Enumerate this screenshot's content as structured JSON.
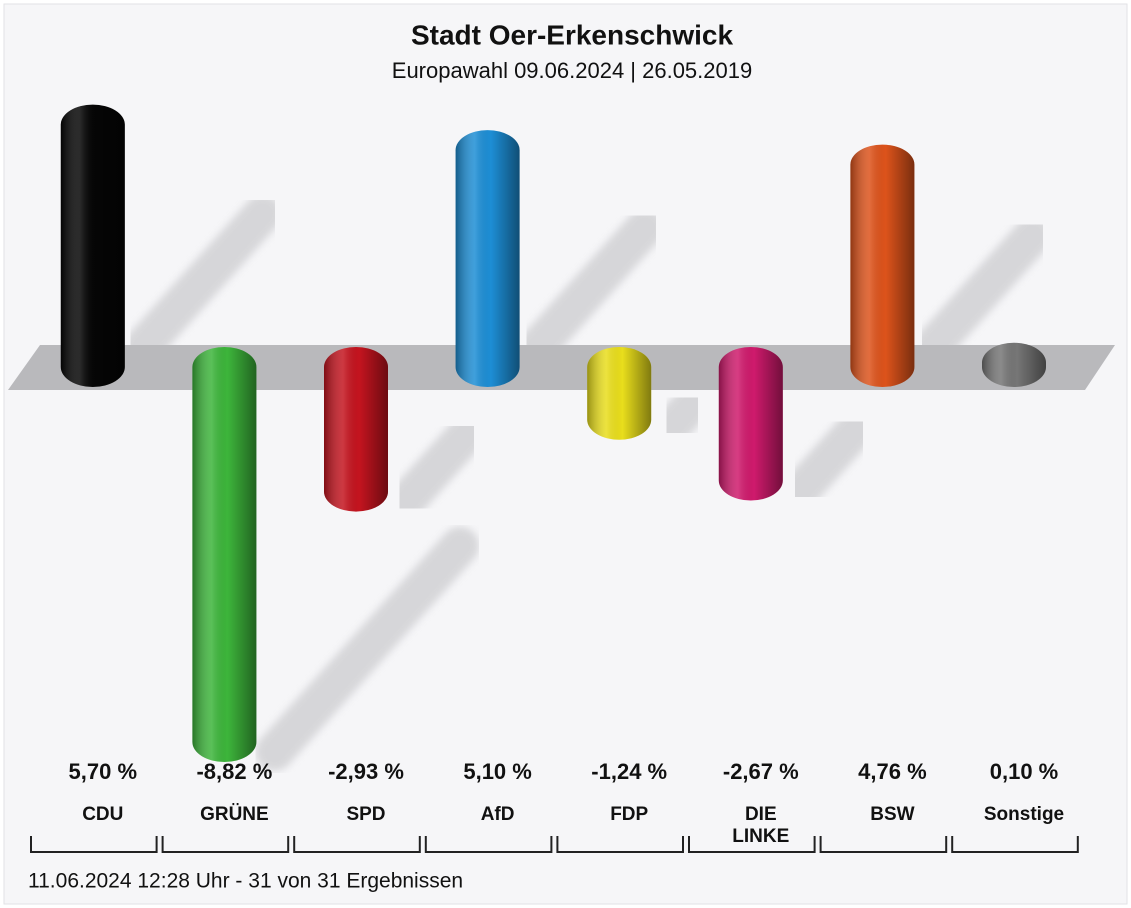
{
  "chart_data": {
    "type": "bar",
    "title": "Stadt Oer-Erkenschwick",
    "subtitle": "Europawahl 09.06.2024  | 26.05.2019",
    "categories": [
      "CDU",
      "GRÜNE",
      "SPD",
      "AfD",
      "FDP",
      "DIE LINKE",
      "BSW",
      "Sonstige"
    ],
    "values": [
      5.7,
      -8.82,
      -2.93,
      5.1,
      -1.24,
      -2.67,
      4.76,
      0.1
    ],
    "value_labels": [
      "5,70 %",
      "-8,82 %",
      "-2,93 %",
      "5,10 %",
      "-1,24 %",
      "-2,67 %",
      "4,76 %",
      "0,10 %"
    ],
    "colors": [
      "#050505",
      "#3db53b",
      "#c4141f",
      "#1d8ed5",
      "#e9de1c",
      "#cf1a6c",
      "#dd531b",
      "#767676"
    ],
    "footer": "11.06.2024 12:28 Uhr - 31 von 31 Ergebnissen"
  }
}
